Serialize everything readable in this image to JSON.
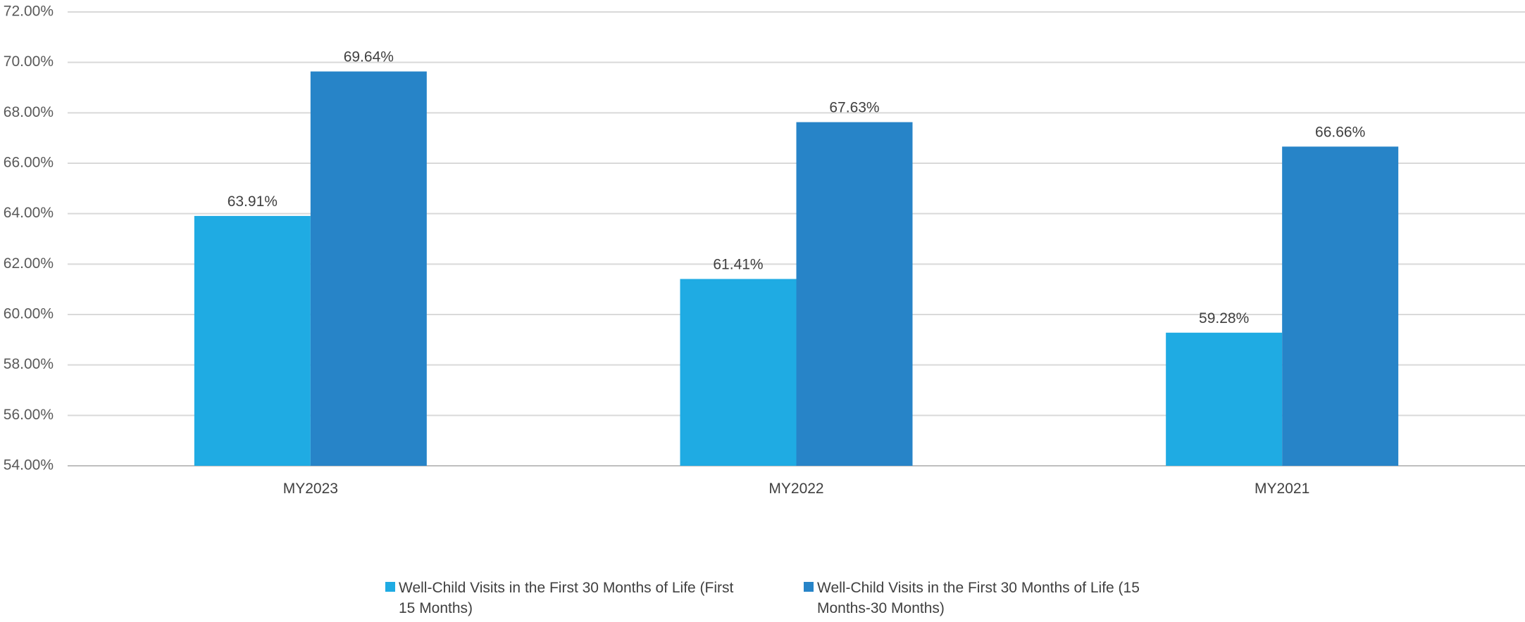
{
  "chart_data": {
    "type": "bar",
    "categories": [
      "MY2023",
      "MY2022",
      "MY2021"
    ],
    "series": [
      {
        "name": "Well-Child Visits in the First 30 Months of Life (First 15 Months)",
        "legend_lines": [
          "Well-Child Visits in the First 30 Months of Life (First",
          "15 Months)"
        ],
        "color": "#1fabe3",
        "values": [
          63.91,
          61.41,
          59.28
        ]
      },
      {
        "name": "Well-Child Visits in the First 30 Months of Life (15 Months-30 Months)",
        "legend_lines": [
          "Well-Child Visits in the First 30 Months of Life (15",
          "Months-30 Months)"
        ],
        "color": "#2784c8",
        "values": [
          69.64,
          67.63,
          66.66
        ]
      }
    ],
    "data_labels": [
      [
        "63.91%",
        "61.41%",
        "59.28%"
      ],
      [
        "69.64%",
        "67.63%",
        "66.66%"
      ]
    ],
    "y_ticks": [
      "54.00%",
      "56.00%",
      "58.00%",
      "60.00%",
      "62.00%",
      "64.00%",
      "66.00%",
      "68.00%",
      "70.00%",
      "72.00%"
    ],
    "ylim": [
      54,
      72
    ],
    "y_step": 2,
    "grid": true,
    "legend_position": "bottom",
    "title": "",
    "xlabel": "",
    "ylabel": ""
  }
}
